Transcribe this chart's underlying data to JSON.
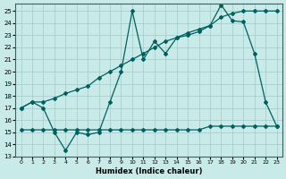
{
  "xlabel": "Humidex (Indice chaleur)",
  "bg_color": "#c8eae8",
  "grid_color": "#a8cece",
  "line_color": "#006060",
  "xlim": [
    -0.5,
    23.5
  ],
  "ylim": [
    13,
    25.6
  ],
  "yticks": [
    13,
    14,
    15,
    16,
    17,
    18,
    19,
    20,
    21,
    22,
    23,
    24,
    25
  ],
  "xticks": [
    0,
    1,
    2,
    3,
    4,
    5,
    6,
    7,
    8,
    9,
    10,
    11,
    12,
    13,
    14,
    15,
    16,
    17,
    18,
    19,
    20,
    21,
    22,
    23
  ],
  "series1_x": [
    0,
    1,
    2,
    3,
    4,
    5,
    6,
    7,
    8,
    9,
    10,
    11,
    12,
    13,
    14,
    15,
    16,
    17,
    18,
    19,
    20,
    21,
    22,
    23
  ],
  "series1_y": [
    17.0,
    17.5,
    17.0,
    15.0,
    13.5,
    15.0,
    14.8,
    15.0,
    17.5,
    20.0,
    25.0,
    21.0,
    22.5,
    21.5,
    22.8,
    23.2,
    23.5,
    23.8,
    25.5,
    24.2,
    24.1,
    21.5,
    17.5,
    15.5
  ],
  "series2_x": [
    0,
    1,
    2,
    3,
    4,
    5,
    6,
    7,
    8,
    9,
    10,
    11,
    12,
    13,
    14,
    15,
    16,
    17,
    18,
    19,
    20,
    21,
    22,
    23
  ],
  "series2_y": [
    17.0,
    17.5,
    17.5,
    17.8,
    18.2,
    18.5,
    18.8,
    19.5,
    20.0,
    20.5,
    21.0,
    21.5,
    22.0,
    22.5,
    22.8,
    23.0,
    23.3,
    23.8,
    24.5,
    24.8,
    25.0,
    25.0,
    25.0,
    25.0
  ],
  "series3_x": [
    0,
    1,
    2,
    3,
    4,
    5,
    6,
    7,
    8,
    9,
    10,
    11,
    12,
    13,
    14,
    15,
    16,
    17,
    18,
    19,
    20,
    21,
    22,
    23
  ],
  "series3_y": [
    15.2,
    15.2,
    15.2,
    15.2,
    15.2,
    15.2,
    15.2,
    15.2,
    15.2,
    15.2,
    15.2,
    15.2,
    15.2,
    15.2,
    15.2,
    15.2,
    15.2,
    15.5,
    15.5,
    15.5,
    15.5,
    15.5,
    15.5,
    15.5
  ]
}
